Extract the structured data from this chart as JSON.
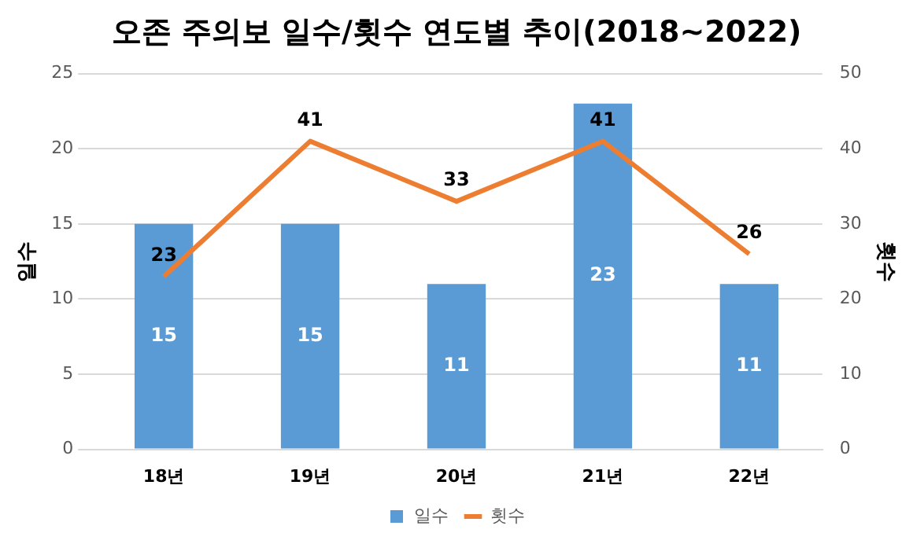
{
  "chart_data": {
    "type": "bar",
    "title": "오존 주의보 일수/횟수 연도별 추이(2018~2022)",
    "ylabel": "일수",
    "y2label": "횟수",
    "categories": [
      "18년",
      "19년",
      "20년",
      "21년",
      "22년"
    ],
    "series": [
      {
        "name": "일수",
        "color": "#5b9bd5",
        "values": [
          15,
          15,
          11,
          23,
          11
        ]
      },
      {
        "name": "횟수",
        "type": "line",
        "axis": "y2",
        "color": "#ed7d31",
        "marker": "none",
        "values": [
          23,
          41,
          33,
          41,
          26
        ]
      }
    ],
    "ylim": [
      0,
      25
    ],
    "yticks": [
      0,
      5,
      10,
      15,
      20,
      25
    ],
    "y2lim": [
      0,
      50
    ],
    "y2ticks": [
      0,
      10,
      20,
      30,
      40,
      50
    ],
    "grid": "y",
    "legend": "bottom",
    "data_labels": true
  }
}
